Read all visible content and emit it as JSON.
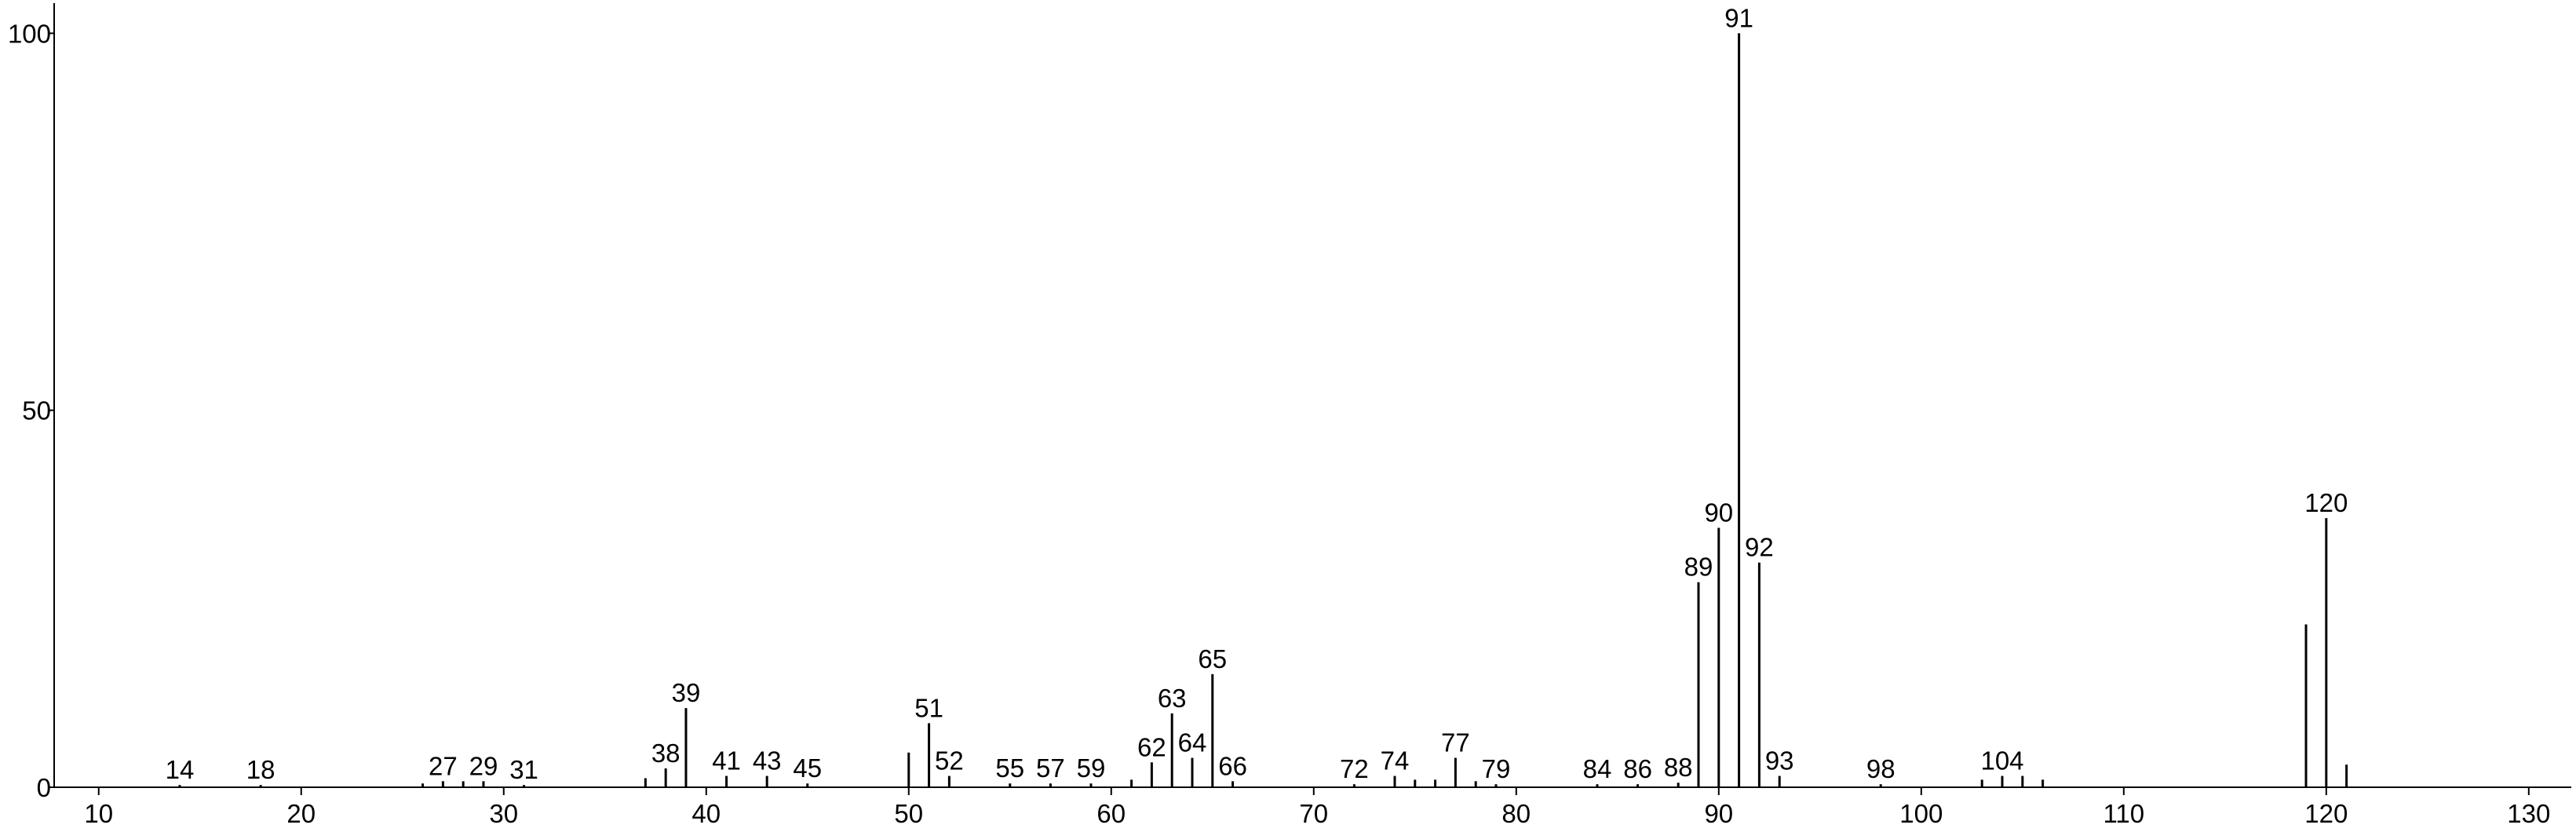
{
  "chart_data": {
    "type": "stem",
    "color": "#000000",
    "xlim": [
      7.8,
      132.1
    ],
    "ylim": [
      0,
      104
    ],
    "xticks": [
      10,
      20,
      30,
      40,
      50,
      60,
      70,
      80,
      90,
      100,
      110,
      120,
      130
    ],
    "yticks": [
      0,
      50,
      100
    ],
    "x": [
      14,
      18,
      26,
      27,
      28,
      29,
      31,
      37,
      38,
      39,
      41,
      43,
      45,
      50,
      51,
      52,
      55,
      57,
      59,
      61,
      62,
      63,
      64,
      65,
      66,
      72,
      74,
      75,
      76,
      77,
      78,
      79,
      84,
      86,
      88,
      89,
      90,
      91,
      92,
      93,
      98,
      103,
      104,
      105,
      106,
      119,
      120,
      121
    ],
    "values": [
      0.3,
      0.3,
      0.5,
      0.8,
      0.8,
      0.8,
      0.3,
      1.2,
      2.5,
      10.5,
      1.5,
      1.5,
      0.5,
      4.6,
      8.5,
      1.5,
      0.5,
      0.5,
      0.5,
      1,
      3.3,
      9.8,
      3.9,
      15,
      0.8,
      0.4,
      1.5,
      1,
      1,
      3.9,
      0.8,
      0.4,
      0.4,
      0.4,
      0.6,
      27.2,
      34.4,
      100,
      29.8,
      1.5,
      0.4,
      1,
      1.5,
      1.5,
      1,
      21.6,
      35.7,
      3
    ],
    "x_labels": [
      14,
      18,
      null,
      27,
      null,
      29,
      31,
      null,
      38,
      39,
      41,
      43,
      45,
      null,
      51,
      52,
      55,
      57,
      59,
      null,
      62,
      63,
      64,
      65,
      66,
      72,
      74,
      null,
      null,
      77,
      null,
      79,
      84,
      86,
      88,
      89,
      90,
      91,
      92,
      93,
      98,
      null,
      104,
      null,
      null,
      null,
      120,
      null
    ]
  }
}
